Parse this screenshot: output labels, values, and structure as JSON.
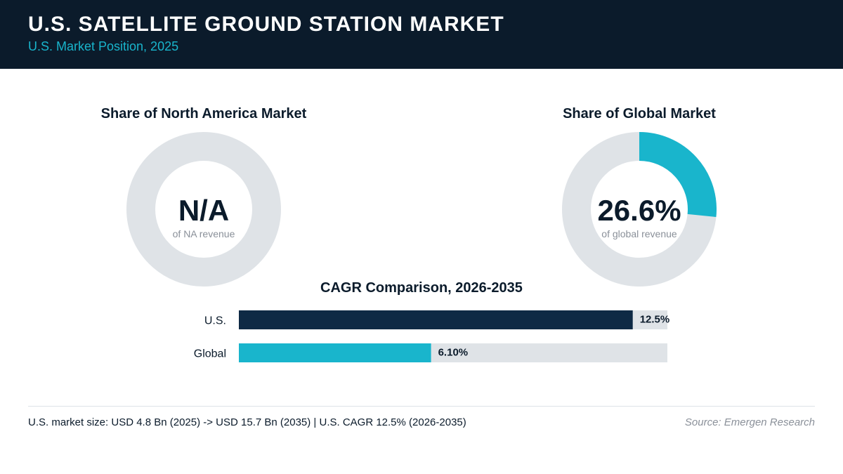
{
  "header": {
    "title": "U.S. SATELLITE GROUND STATION MARKET",
    "subtitle": "U.S. Market Position, 2025"
  },
  "colors": {
    "header_bg": "#0b1b2b",
    "accent_teal": "#19b5cc",
    "navy": "#0e2a45",
    "track_gray": "#dfe3e7"
  },
  "donuts": [
    {
      "title": "Share of North America Market",
      "value_label": "N/A",
      "sub_label": "of NA revenue",
      "share_percent": null
    },
    {
      "title": "Share of Global Market",
      "value_label": "26.6%",
      "sub_label": "of global revenue",
      "share_percent": 26.6
    }
  ],
  "chart_data": {
    "type": "bar",
    "orientation": "horizontal",
    "title": "CAGR Comparison, 2026-2035",
    "categories": [
      "U.S.",
      "Global"
    ],
    "values": [
      12.5,
      6.1
    ],
    "value_labels": [
      "12.5%",
      "6.10%"
    ],
    "xlim": [
      0,
      13.6
    ],
    "colors": [
      "#0e2a45",
      "#19b5cc"
    ],
    "grid": false
  },
  "footer": {
    "note": "U.S. market size: USD 4.8 Bn (2025) -> USD 15.7 Bn (2035)  |  U.S. CAGR 12.5% (2026-2035)",
    "source": "Source: Emergen Research"
  }
}
